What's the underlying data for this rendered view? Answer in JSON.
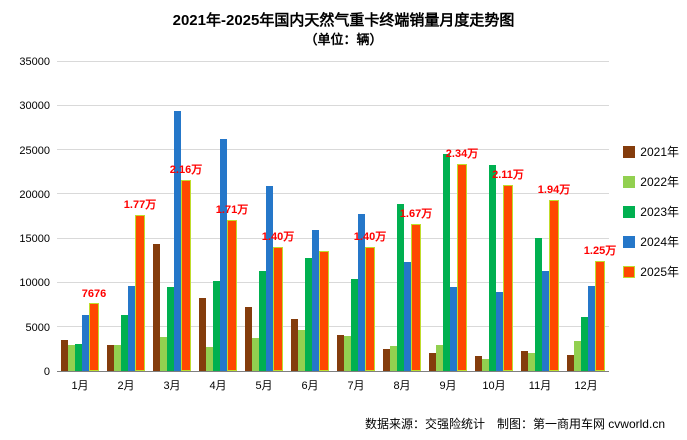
{
  "chart_data": {
    "type": "bar",
    "title": "2021年-2025年国内天然气重卡终端销量月度走势图",
    "subtitle": "（单位：辆）",
    "categories": [
      "1月",
      "2月",
      "3月",
      "4月",
      "5月",
      "6月",
      "7月",
      "8月",
      "9月",
      "10月",
      "11月",
      "12月"
    ],
    "ylim": [
      0,
      35000
    ],
    "ytick_step": 5000,
    "grid": true,
    "legend_position": "right",
    "label_color": "#FF0000",
    "series": [
      {
        "name": "2021年",
        "color": "#843C0C",
        "values": [
          3500,
          3000,
          14400,
          8300,
          7200,
          5900,
          4100,
          2500,
          2000,
          1700,
          2300,
          1800
        ]
      },
      {
        "name": "2022年",
        "color": "#92D050",
        "values": [
          3000,
          2900,
          3800,
          2700,
          3700,
          4600,
          4000,
          2800,
          2900,
          1400,
          2000,
          3400
        ]
      },
      {
        "name": "2023年",
        "color": "#00B050",
        "values": [
          3100,
          6300,
          9500,
          10200,
          11300,
          12800,
          10400,
          18900,
          24600,
          23300,
          15100,
          6100
        ]
      },
      {
        "name": "2024年",
        "color": "#2577C9",
        "values": [
          6400,
          9600,
          29400,
          26300,
          21000,
          16000,
          17800,
          12300,
          9500,
          8900,
          11300,
          9600
        ]
      },
      {
        "name": "2025年",
        "color": "#FF4800",
        "border_color": "#BFDD2C",
        "highlight": true,
        "label_color": "#FF0000",
        "values": [
          7676,
          17700,
          21600,
          17100,
          14000,
          13600,
          14000,
          16700,
          23400,
          21100,
          19400,
          12500
        ],
        "labels": [
          "7676",
          "1.77万",
          "2.16万",
          "1.71万",
          "1.40万",
          "",
          "1.40万",
          "1.67万",
          "2.34万",
          "2.11万",
          "1.94万",
          "1.25万"
        ]
      }
    ]
  },
  "footer": {
    "text": "数据来源：交强险统计　制图：第一商用车网 cvworld.cn"
  }
}
